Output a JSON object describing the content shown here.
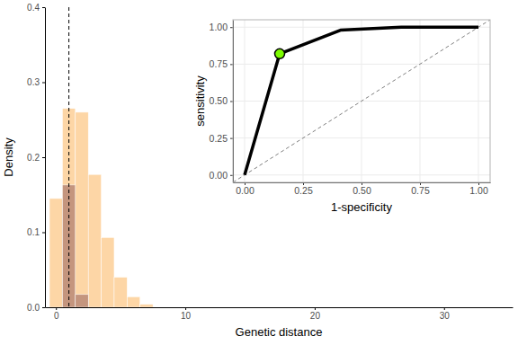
{
  "chart_data": [
    {
      "type": "histogram",
      "xlabel": "Genetic distance",
      "ylabel": "Density",
      "bins": [
        -0.5,
        0.5,
        1.5,
        2.5,
        3.5,
        4.5,
        5.5,
        6.5,
        7.5
      ],
      "series": [
        {
          "color": "#fdd6a6",
          "values": [
            0.145,
            0.265,
            0.26,
            0.177,
            0.093,
            0.04,
            0.014,
            0.004
          ]
        },
        {
          "color": "#c4957e",
          "values": [
            0,
            0.163,
            0.017,
            0,
            0,
            0,
            0,
            0
          ]
        }
      ],
      "vline": {
        "x": 1,
        "line_style": "dashed",
        "color": "#000000"
      },
      "xlim": [
        -0.85,
        35.3
      ],
      "ylim": [
        0,
        0.4
      ],
      "xticks": [
        0,
        10,
        20,
        30
      ],
      "yticks": [
        {
          "value": 0,
          "label": "0.0"
        },
        {
          "value": 0.1,
          "label": "0.1"
        },
        {
          "value": 0.2,
          "label": "0.2"
        },
        {
          "value": 0.3,
          "label": "0.3"
        },
        {
          "value": 0.4,
          "label": "0.4"
        }
      ],
      "grid": false
    },
    {
      "type": "line",
      "xlabel": "1-specificity",
      "ylabel": "sensitivity",
      "x": [
        0,
        0.15,
        0.41,
        0.67,
        1
      ],
      "series": [
        {
          "color": "#000000",
          "values": [
            0,
            0.82,
            0.98,
            1,
            1
          ]
        }
      ],
      "highlight": {
        "x": 0.15,
        "y": 0.82,
        "color": "#7cfc00"
      },
      "reference_line": {
        "x": [
          -0.05,
          1.05
        ],
        "y": [
          -0.05,
          1.05
        ],
        "color": "#808080",
        "line_style": "dashed"
      },
      "xlim": [
        -0.05,
        1.05
      ],
      "ylim": [
        -0.05,
        1.05
      ],
      "xticks": [
        {
          "value": 0,
          "label": "0.00"
        },
        {
          "value": 0.25,
          "label": "0.25"
        },
        {
          "value": 0.5,
          "label": "0.50"
        },
        {
          "value": 0.75,
          "label": "0.75"
        },
        {
          "value": 1,
          "label": "1.00"
        }
      ],
      "yticks": [
        {
          "value": 0,
          "label": "0.00"
        },
        {
          "value": 0.25,
          "label": "0.25"
        },
        {
          "value": 0.5,
          "label": "0.50"
        },
        {
          "value": 0.75,
          "label": "0.75"
        },
        {
          "value": 1,
          "label": "1.00"
        }
      ],
      "grid": true
    }
  ]
}
